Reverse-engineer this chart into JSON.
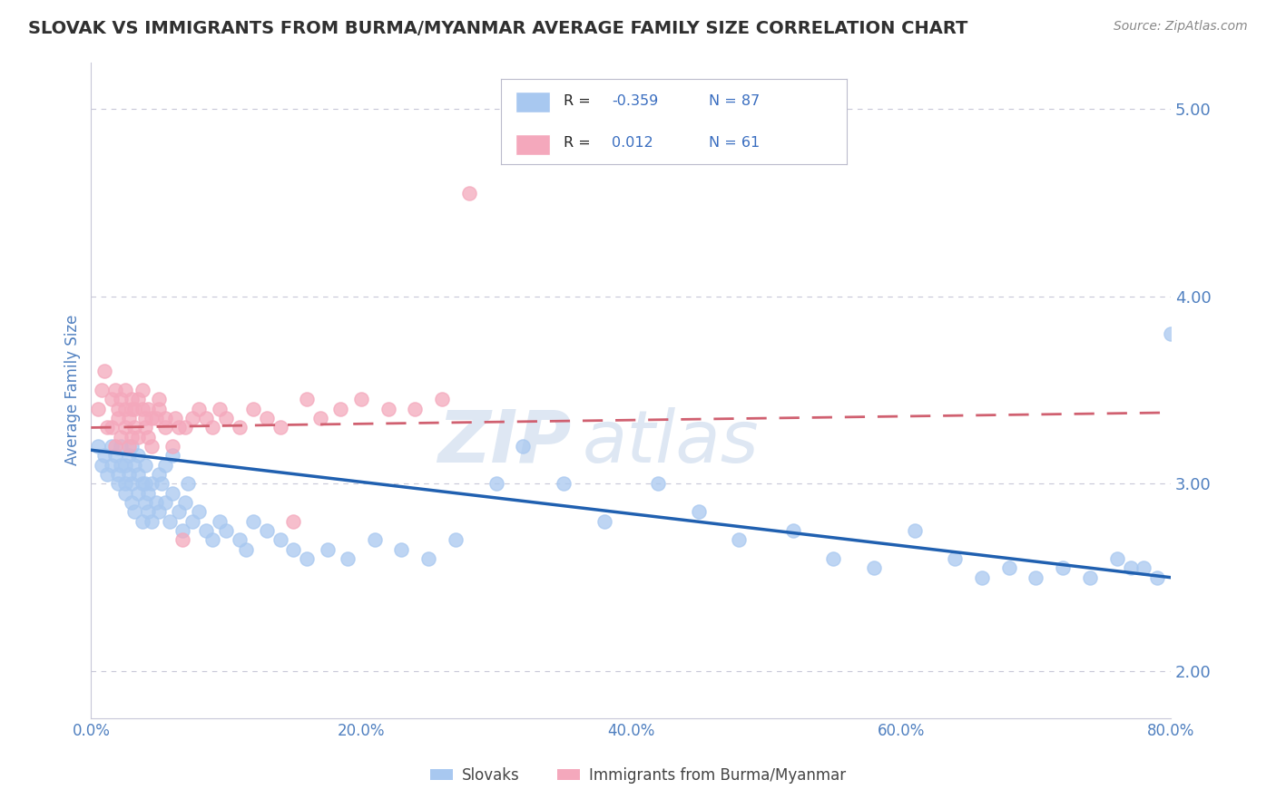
{
  "title": "SLOVAK VS IMMIGRANTS FROM BURMA/MYANMAR AVERAGE FAMILY SIZE CORRELATION CHART",
  "source_text": "Source: ZipAtlas.com",
  "ylabel": "Average Family Size",
  "watermark_zip": "ZIP",
  "watermark_atlas": "atlas",
  "xlim": [
    0.0,
    0.8
  ],
  "ylim": [
    1.75,
    5.25
  ],
  "yticks": [
    2.0,
    3.0,
    4.0,
    5.0
  ],
  "xticks": [
    0.0,
    0.2,
    0.4,
    0.6,
    0.8
  ],
  "xtick_labels": [
    "0.0%",
    "20.0%",
    "40.0%",
    "60.0%",
    "80.0%"
  ],
  "blue_R": -0.359,
  "blue_N": 87,
  "pink_R": 0.012,
  "pink_N": 61,
  "blue_color": "#A8C8F0",
  "pink_color": "#F4A8BC",
  "blue_line_color": "#2060B0",
  "pink_line_color": "#D06070",
  "axis_color": "#5080C0",
  "grid_color": "#C8C8D8",
  "title_color": "#303030",
  "legend_text_color": "#3A6EC0",
  "legend_label1": "Slovaks",
  "legend_label2": "Immigrants from Burma/Myanmar",
  "blue_scatter_x": [
    0.005,
    0.008,
    0.01,
    0.012,
    0.015,
    0.015,
    0.018,
    0.02,
    0.02,
    0.022,
    0.022,
    0.025,
    0.025,
    0.025,
    0.028,
    0.028,
    0.03,
    0.03,
    0.03,
    0.032,
    0.032,
    0.035,
    0.035,
    0.035,
    0.038,
    0.038,
    0.04,
    0.04,
    0.04,
    0.042,
    0.042,
    0.045,
    0.045,
    0.048,
    0.05,
    0.05,
    0.052,
    0.055,
    0.055,
    0.058,
    0.06,
    0.06,
    0.065,
    0.068,
    0.07,
    0.072,
    0.075,
    0.08,
    0.085,
    0.09,
    0.095,
    0.1,
    0.11,
    0.115,
    0.12,
    0.13,
    0.14,
    0.15,
    0.16,
    0.175,
    0.19,
    0.21,
    0.23,
    0.25,
    0.27,
    0.3,
    0.32,
    0.35,
    0.38,
    0.42,
    0.45,
    0.48,
    0.52,
    0.55,
    0.58,
    0.61,
    0.64,
    0.66,
    0.68,
    0.7,
    0.72,
    0.74,
    0.76,
    0.77,
    0.78,
    0.79,
    0.8
  ],
  "blue_scatter_y": [
    3.2,
    3.1,
    3.15,
    3.05,
    3.2,
    3.1,
    3.15,
    3.05,
    3.0,
    3.1,
    3.2,
    3.1,
    3.0,
    2.95,
    3.05,
    3.15,
    3.2,
    3.0,
    2.9,
    3.1,
    2.85,
    3.05,
    2.95,
    3.15,
    3.0,
    2.8,
    3.1,
    2.9,
    3.0,
    2.85,
    2.95,
    3.0,
    2.8,
    2.9,
    3.05,
    2.85,
    3.0,
    2.9,
    3.1,
    2.8,
    2.95,
    3.15,
    2.85,
    2.75,
    2.9,
    3.0,
    2.8,
    2.85,
    2.75,
    2.7,
    2.8,
    2.75,
    2.7,
    2.65,
    2.8,
    2.75,
    2.7,
    2.65,
    2.6,
    2.65,
    2.6,
    2.7,
    2.65,
    2.6,
    2.7,
    3.0,
    3.2,
    3.0,
    2.8,
    3.0,
    2.85,
    2.7,
    2.75,
    2.6,
    2.55,
    2.75,
    2.6,
    2.5,
    2.55,
    2.5,
    2.55,
    2.5,
    2.6,
    2.55,
    2.55,
    2.5,
    3.8
  ],
  "pink_scatter_x": [
    0.005,
    0.008,
    0.01,
    0.012,
    0.015,
    0.015,
    0.018,
    0.018,
    0.02,
    0.02,
    0.022,
    0.022,
    0.025,
    0.025,
    0.025,
    0.028,
    0.028,
    0.03,
    0.03,
    0.03,
    0.032,
    0.032,
    0.035,
    0.035,
    0.038,
    0.038,
    0.04,
    0.04,
    0.042,
    0.042,
    0.045,
    0.045,
    0.048,
    0.05,
    0.05,
    0.055,
    0.055,
    0.06,
    0.062,
    0.065,
    0.068,
    0.07,
    0.075,
    0.08,
    0.085,
    0.09,
    0.095,
    0.1,
    0.11,
    0.12,
    0.13,
    0.14,
    0.15,
    0.16,
    0.17,
    0.185,
    0.2,
    0.22,
    0.24,
    0.26,
    0.28
  ],
  "pink_scatter_y": [
    3.4,
    3.5,
    3.6,
    3.3,
    3.45,
    3.3,
    3.5,
    3.2,
    3.35,
    3.4,
    3.45,
    3.25,
    3.5,
    3.3,
    3.4,
    3.35,
    3.2,
    3.4,
    3.45,
    3.25,
    3.4,
    3.3,
    3.45,
    3.25,
    3.4,
    3.5,
    3.3,
    3.35,
    3.4,
    3.25,
    3.35,
    3.2,
    3.35,
    3.4,
    3.45,
    3.3,
    3.35,
    3.2,
    3.35,
    3.3,
    2.7,
    3.3,
    3.35,
    3.4,
    3.35,
    3.3,
    3.4,
    3.35,
    3.3,
    3.4,
    3.35,
    3.3,
    2.8,
    3.45,
    3.35,
    3.4,
    3.45,
    3.4,
    3.4,
    3.45,
    4.55
  ]
}
